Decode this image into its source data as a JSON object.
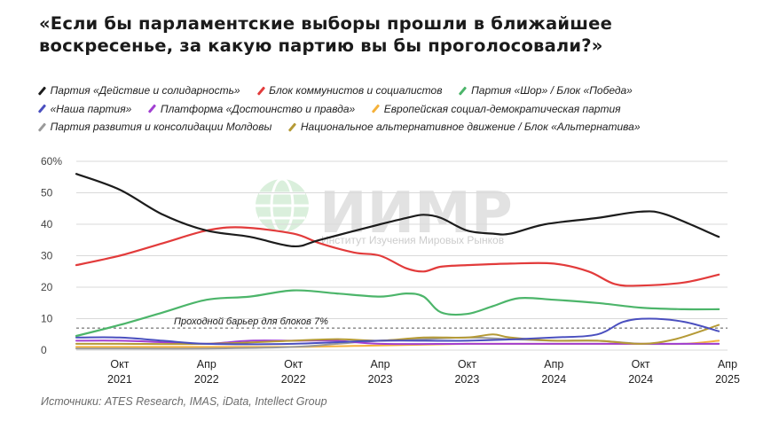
{
  "title": "«Если бы парламентские выборы прошли в ближайшее воскресенье, за какую партию вы бы проголосовали?»",
  "source": "Источники: ATES Research, IMAS, iData, Intellect Group",
  "watermark": {
    "main": "ИИМР",
    "sub": "Институт Изучения Мировых Рынков"
  },
  "chart_data": {
    "type": "line",
    "title": "«Если бы парламентские выборы прошли в ближайшее воскресенье, за какую партию вы бы проголосовали?»",
    "y_ticks": [
      "60%",
      "50",
      "40",
      "30",
      "20",
      "10",
      "0"
    ],
    "ylim": [
      0,
      60
    ],
    "xlim": [
      2021.5,
      2025.25
    ],
    "x_ticks": [
      {
        "x": 2021.75,
        "l1": "Окт",
        "l2": "2021"
      },
      {
        "x": 2022.25,
        "l1": "Апр",
        "l2": "2022"
      },
      {
        "x": 2022.75,
        "l1": "Окт",
        "l2": "2022"
      },
      {
        "x": 2023.25,
        "l1": "Апр",
        "l2": "2023"
      },
      {
        "x": 2023.75,
        "l1": "Окт",
        "l2": "2023"
      },
      {
        "x": 2024.25,
        "l1": "Апр",
        "l2": "2024"
      },
      {
        "x": 2024.75,
        "l1": "Окт",
        "l2": "2024"
      },
      {
        "x": 2025.25,
        "l1": "Апр",
        "l2": "2025"
      }
    ],
    "grid": true,
    "threshold": {
      "value": 7,
      "label": "Проходной барьер для блоков 7%"
    },
    "series": [
      {
        "name": "Партия «Действие и солидарность»",
        "color": "#1c1c1c",
        "points": [
          [
            2021.5,
            56
          ],
          [
            2021.75,
            51
          ],
          [
            2022.0,
            43
          ],
          [
            2022.25,
            38
          ],
          [
            2022.5,
            36
          ],
          [
            2022.75,
            33
          ],
          [
            2022.9,
            35
          ],
          [
            2023.25,
            40
          ],
          [
            2023.4,
            42
          ],
          [
            2023.5,
            43
          ],
          [
            2023.6,
            42
          ],
          [
            2023.75,
            38
          ],
          [
            2023.9,
            37
          ],
          [
            2024.0,
            37
          ],
          [
            2024.2,
            40
          ],
          [
            2024.5,
            42
          ],
          [
            2024.75,
            44
          ],
          [
            2024.9,
            43
          ],
          [
            2025.2,
            36
          ]
        ]
      },
      {
        "name": "Блок коммунистов и социалистов",
        "color": "#e23b3b",
        "points": [
          [
            2021.5,
            27
          ],
          [
            2021.75,
            30
          ],
          [
            2022.0,
            34
          ],
          [
            2022.25,
            38
          ],
          [
            2022.45,
            39
          ],
          [
            2022.75,
            37
          ],
          [
            2022.9,
            34
          ],
          [
            2023.1,
            31
          ],
          [
            2023.25,
            30
          ],
          [
            2023.4,
            26
          ],
          [
            2023.5,
            25
          ],
          [
            2023.6,
            26.5
          ],
          [
            2023.75,
            27
          ],
          [
            2024.0,
            27.5
          ],
          [
            2024.25,
            27.5
          ],
          [
            2024.45,
            25
          ],
          [
            2024.6,
            21
          ],
          [
            2024.75,
            20.5
          ],
          [
            2025.0,
            21.5
          ],
          [
            2025.2,
            24
          ]
        ]
      },
      {
        "name": "Партия «Шор» / Блок «Победа»",
        "color": "#4cb56a",
        "points": [
          [
            2021.5,
            4.5
          ],
          [
            2021.75,
            8
          ],
          [
            2022.0,
            12
          ],
          [
            2022.25,
            16
          ],
          [
            2022.5,
            17
          ],
          [
            2022.75,
            19
          ],
          [
            2023.0,
            18
          ],
          [
            2023.25,
            17
          ],
          [
            2023.4,
            18
          ],
          [
            2023.5,
            17
          ],
          [
            2023.6,
            12
          ],
          [
            2023.75,
            11.5
          ],
          [
            2023.9,
            14
          ],
          [
            2024.05,
            16.5
          ],
          [
            2024.25,
            16
          ],
          [
            2024.5,
            15
          ],
          [
            2024.75,
            13.5
          ],
          [
            2025.0,
            13
          ],
          [
            2025.2,
            13
          ]
        ]
      },
      {
        "name": "«Наша партия»",
        "color": "#4a4fbf",
        "points": [
          [
            2021.5,
            4
          ],
          [
            2021.75,
            4
          ],
          [
            2022.0,
            3
          ],
          [
            2022.25,
            2
          ],
          [
            2022.75,
            2
          ],
          [
            2023.25,
            3
          ],
          [
            2023.75,
            3
          ],
          [
            2024.25,
            4
          ],
          [
            2024.5,
            5
          ],
          [
            2024.65,
            9
          ],
          [
            2024.8,
            10
          ],
          [
            2025.0,
            9
          ],
          [
            2025.2,
            6
          ]
        ]
      },
      {
        "name": "Платформа «Достоинство и правда»",
        "color": "#a13fd1",
        "points": [
          [
            2021.5,
            3
          ],
          [
            2021.75,
            3
          ],
          [
            2022.0,
            2.5
          ],
          [
            2022.25,
            2
          ],
          [
            2022.5,
            3
          ],
          [
            2022.75,
            3
          ],
          [
            2023.0,
            3
          ],
          [
            2023.25,
            2
          ],
          [
            2023.75,
            2
          ],
          [
            2024.25,
            2
          ],
          [
            2024.75,
            2
          ],
          [
            2025.2,
            2
          ]
        ]
      },
      {
        "name": "Европейская социал-демократическая партия",
        "color": "#f5b13a",
        "points": [
          [
            2021.5,
            1
          ],
          [
            2021.75,
            1
          ],
          [
            2022.25,
            1
          ],
          [
            2022.75,
            1
          ],
          [
            2023.25,
            1.5
          ],
          [
            2023.75,
            2
          ],
          [
            2024.25,
            2
          ],
          [
            2024.75,
            2
          ],
          [
            2025.0,
            2
          ],
          [
            2025.2,
            3
          ]
        ]
      },
      {
        "name": "Партия развития и консолидации Молдовы",
        "color": "#9a9a9a",
        "points": [
          [
            2021.5,
            0.5
          ],
          [
            2021.75,
            0.5
          ],
          [
            2022.25,
            0.5
          ],
          [
            2022.75,
            1
          ],
          [
            2023.0,
            2
          ],
          [
            2023.25,
            3
          ],
          [
            2023.5,
            3.5
          ],
          [
            2023.75,
            4
          ],
          [
            2024.0,
            3.5
          ],
          [
            2024.25,
            3
          ],
          [
            2024.5,
            3
          ],
          [
            2024.75,
            2
          ],
          [
            2025.0,
            2
          ],
          [
            2025.2,
            2
          ]
        ]
      },
      {
        "name": "Национальное альтернативное движение / Блок «Альтернатива»",
        "color": "#b59a36",
        "points": [
          [
            2021.5,
            2
          ],
          [
            2021.75,
            2
          ],
          [
            2022.25,
            2
          ],
          [
            2022.75,
            3
          ],
          [
            2023.0,
            3.5
          ],
          [
            2023.25,
            3
          ],
          [
            2023.5,
            4
          ],
          [
            2023.75,
            4
          ],
          [
            2023.9,
            5
          ],
          [
            2024.0,
            4
          ],
          [
            2024.25,
            3
          ],
          [
            2024.5,
            3
          ],
          [
            2024.75,
            2
          ],
          [
            2024.95,
            3.5
          ],
          [
            2025.2,
            8
          ]
        ]
      }
    ]
  }
}
